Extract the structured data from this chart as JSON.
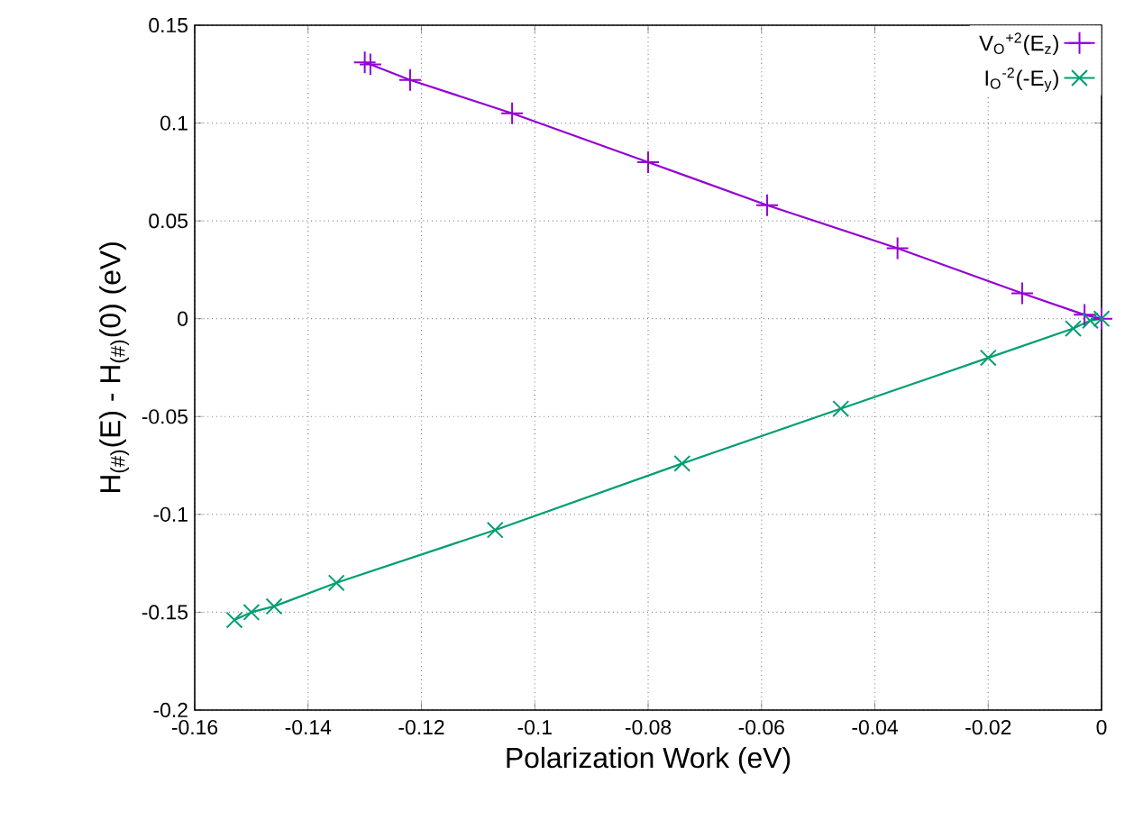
{
  "chart_data": {
    "type": "line",
    "xlabel": "Polarization Work (eV)",
    "ylabel": "H$_{(#)}$(E) - H$_{(#)}$(0) (eV)",
    "xlim": [
      -0.16,
      0
    ],
    "ylim": [
      -0.2,
      0.15
    ],
    "xticks": [
      -0.16,
      -0.14,
      -0.12,
      -0.1,
      -0.08,
      -0.06,
      -0.04,
      -0.02,
      0
    ],
    "yticks": [
      -0.2,
      -0.15,
      -0.1,
      -0.05,
      0,
      0.05,
      0.1,
      0.15
    ],
    "grid": true,
    "legend": "top right",
    "line_style": "solid",
    "series": [
      {
        "name": "V$_{O}$$^{+2}$(E$_{z}$)",
        "color": "#9400d3",
        "marker": "cross",
        "x": [
          -0.13,
          -0.129,
          -0.122,
          -0.104,
          -0.08,
          -0.059,
          -0.036,
          -0.014,
          -0.003,
          0
        ],
        "values": [
          0.131,
          0.13,
          0.122,
          0.105,
          0.08,
          0.058,
          0.036,
          0.013,
          0.002,
          0
        ]
      },
      {
        "name": "I$_{O}$$^{-2}$(-E$_{y}$)",
        "color": "#009e73",
        "marker": "cross",
        "x": [
          -0.153,
          -0.15,
          -0.146,
          -0.135,
          -0.107,
          -0.074,
          -0.046,
          -0.02,
          -0.005,
          -0.002,
          0
        ],
        "values": [
          -0.154,
          -0.15,
          -0.147,
          -0.135,
          -0.108,
          -0.074,
          -0.046,
          -0.02,
          -0.005,
          -0.001,
          0
        ]
      }
    ]
  }
}
